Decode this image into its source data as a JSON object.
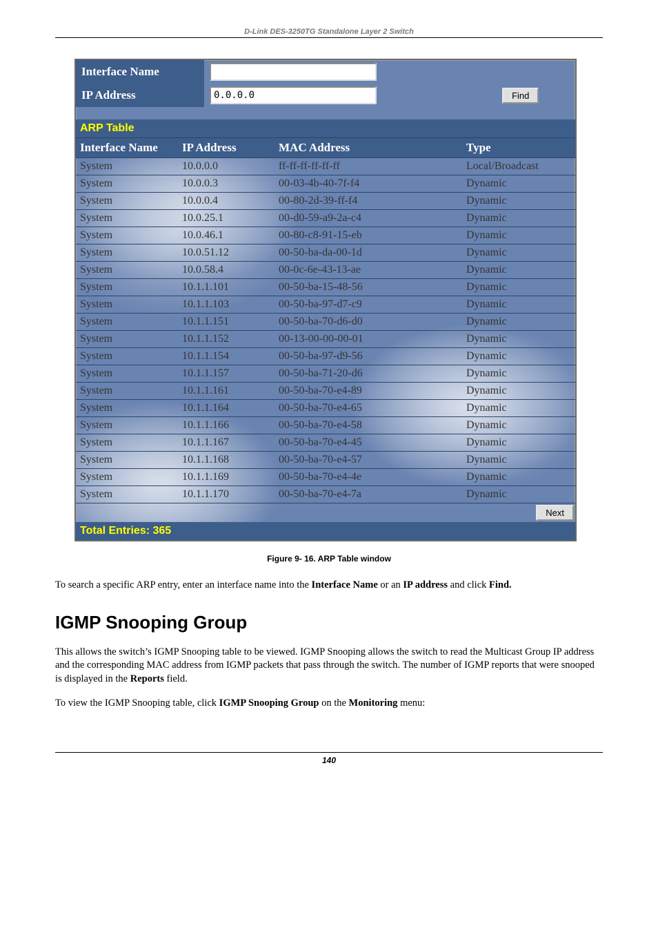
{
  "doc_header": "D-Link DES-3250TG Standalone Layer 2 Switch",
  "form": {
    "interface_name_label": "Interface Name",
    "interface_name_value": "",
    "ip_address_label": "IP Address",
    "ip_address_value": "0.0.0.0",
    "find_label": "Find"
  },
  "arp": {
    "section_title": "ARP Table",
    "columns": [
      "Interface Name",
      "IP Address",
      "MAC Address",
      "Type"
    ],
    "rows": [
      [
        "System",
        "10.0.0.0",
        "ff-ff-ff-ff-ff-ff",
        "Local/Broadcast"
      ],
      [
        "System",
        "10.0.0.3",
        "00-03-4b-40-7f-f4",
        "Dynamic"
      ],
      [
        "System",
        "10.0.0.4",
        "00-80-2d-39-ff-f4",
        "Dynamic"
      ],
      [
        "System",
        "10.0.25.1",
        "00-d0-59-a9-2a-c4",
        "Dynamic"
      ],
      [
        "System",
        "10.0.46.1",
        "00-80-c8-91-15-eb",
        "Dynamic"
      ],
      [
        "System",
        "10.0.51.12",
        "00-50-ba-da-00-1d",
        "Dynamic"
      ],
      [
        "System",
        "10.0.58.4",
        "00-0c-6e-43-13-ae",
        "Dynamic"
      ],
      [
        "System",
        "10.1.1.101",
        "00-50-ba-15-48-56",
        "Dynamic"
      ],
      [
        "System",
        "10.1.1.103",
        "00-50-ba-97-d7-c9",
        "Dynamic"
      ],
      [
        "System",
        "10.1.1.151",
        "00-50-ba-70-d6-d0",
        "Dynamic"
      ],
      [
        "System",
        "10.1.1.152",
        "00-13-00-00-00-01",
        "Dynamic"
      ],
      [
        "System",
        "10.1.1.154",
        "00-50-ba-97-d9-56",
        "Dynamic"
      ],
      [
        "System",
        "10.1.1.157",
        "00-50-ba-71-20-d6",
        "Dynamic"
      ],
      [
        "System",
        "10.1.1.161",
        "00-50-ba-70-e4-89",
        "Dynamic"
      ],
      [
        "System",
        "10.1.1.164",
        "00-50-ba-70-e4-65",
        "Dynamic"
      ],
      [
        "System",
        "10.1.1.166",
        "00-50-ba-70-e4-58",
        "Dynamic"
      ],
      [
        "System",
        "10.1.1.167",
        "00-50-ba-70-e4-45",
        "Dynamic"
      ],
      [
        "System",
        "10.1.1.168",
        "00-50-ba-70-e4-57",
        "Dynamic"
      ],
      [
        "System",
        "10.1.1.169",
        "00-50-ba-70-e4-4e",
        "Dynamic"
      ],
      [
        "System",
        "10.1.1.170",
        "00-50-ba-70-e4-7a",
        "Dynamic"
      ]
    ],
    "next_label": "Next",
    "total_label": "Total Entries: 365",
    "col_widths": [
      "136px",
      "128px",
      "260px",
      "auto"
    ]
  },
  "figure_caption": "Figure 9- 16. ARP Table window",
  "para1_parts": [
    "To search a specific ARP entry, enter an interface name into the ",
    "Interface Name",
    " or an ",
    "IP address",
    " and click ",
    "Find."
  ],
  "heading2": "IGMP Snooping Group",
  "para2_parts": [
    "This allows the switch’s IGMP Snooping table to be viewed. IGMP Snooping allows the switch to read the Multicast Group IP address and the corresponding MAC address from IGMP packets that pass through the switch. The number of IGMP reports that were snooped is displayed in the ",
    "Reports",
    " field."
  ],
  "para3_parts": [
    "To view the IGMP Snooping table, click ",
    "IGMP Snooping Group",
    " on the ",
    "Monitoring",
    " menu:"
  ],
  "page_number": "140",
  "colors": {
    "panel_bg": "#6a84b1",
    "header_cell_bg": "#3d5d8a",
    "yellow": "#ffff00",
    "white": "#ffffff"
  }
}
